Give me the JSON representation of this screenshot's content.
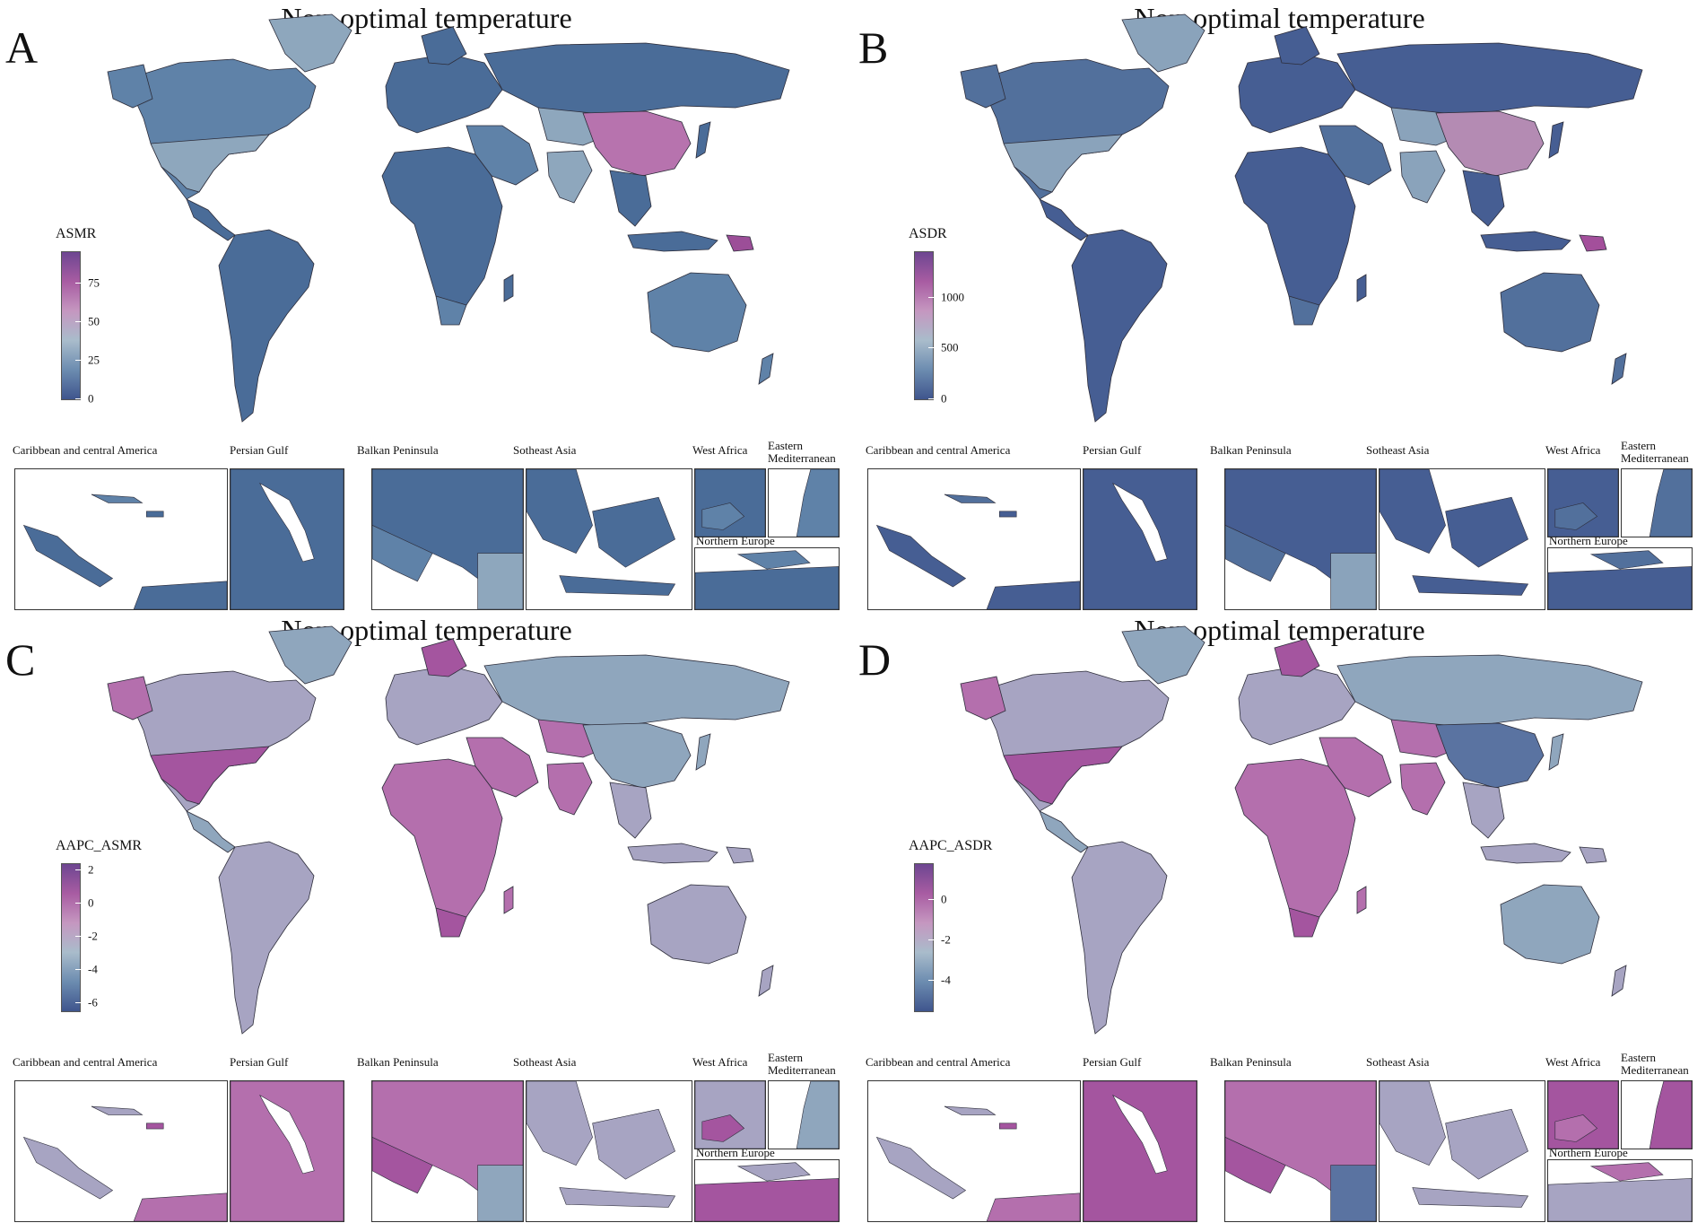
{
  "panels": [
    {
      "id": "A",
      "letter": "A",
      "title": "Non-optimal temperature",
      "legend": {
        "title": "ASMR",
        "ticks": [
          "75",
          "50",
          "25",
          "0"
        ],
        "tick_values": [
          75,
          50,
          25,
          0
        ],
        "min": 0,
        "max": 95
      },
      "colors": {
        "ocean": "#ffffff",
        "low": "#4a6c98",
        "mid_low": "#5f82a8",
        "mid": "#8ea7bd",
        "high": "#b773ae",
        "top": "#9c4e98"
      }
    },
    {
      "id": "B",
      "letter": "B",
      "title": "Non-optimal temperature",
      "legend": {
        "title": "ASDR",
        "ticks": [
          "1000",
          "500",
          "0"
        ],
        "tick_values": [
          1000,
          500,
          0
        ],
        "min": 0,
        "max": 1450
      },
      "colors": {
        "ocean": "#ffffff",
        "low": "#465e93",
        "mid_low": "#52709c",
        "mid": "#8aa3bb",
        "high": "#b48bb3",
        "top": "#a34f9b"
      }
    },
    {
      "id": "C",
      "letter": "C",
      "title": "Non-optimal temperature",
      "legend": {
        "title": "AAPC_ASMR",
        "ticks": [
          "2",
          "0",
          "-2",
          "-4",
          "-6"
        ],
        "tick_values": [
          2,
          0,
          -2,
          -4,
          -6
        ],
        "min": -6.5,
        "max": 2.4
      },
      "colors": {
        "ocean": "#ffffff",
        "low": "#5a73a1",
        "mid_low": "#8fa6bd",
        "mid": "#a7a4c2",
        "high": "#b46fad",
        "top": "#a4559f"
      }
    },
    {
      "id": "D",
      "letter": "D",
      "title": "Non-optimal temperature",
      "legend": {
        "title": "AAPC_ASDR",
        "ticks": [
          "0",
          "-2",
          "-4"
        ],
        "tick_values": [
          0,
          -2,
          -4
        ],
        "min": -5.5,
        "max": 1.8
      },
      "colors": {
        "ocean": "#ffffff",
        "low": "#5a73a1",
        "mid_low": "#8fa6bd",
        "mid": "#a7a4c2",
        "high": "#b46fad",
        "top": "#a4559f"
      }
    }
  ],
  "insets": {
    "caribbean": "Caribbean and central America",
    "persian_gulf": "Persian Gulf",
    "balkan": "Balkan Peninsula",
    "southeast_asia": "Sotheast Asia",
    "west_africa": "West Africa",
    "east_med": "Eastern Mediterranean",
    "northern_europe": "Northern Europe"
  },
  "gradient_colors": [
    "#3f558d",
    "#6c8cb0",
    "#a9bccb",
    "#c597c0",
    "#a85ca2",
    "#6d4691"
  ]
}
